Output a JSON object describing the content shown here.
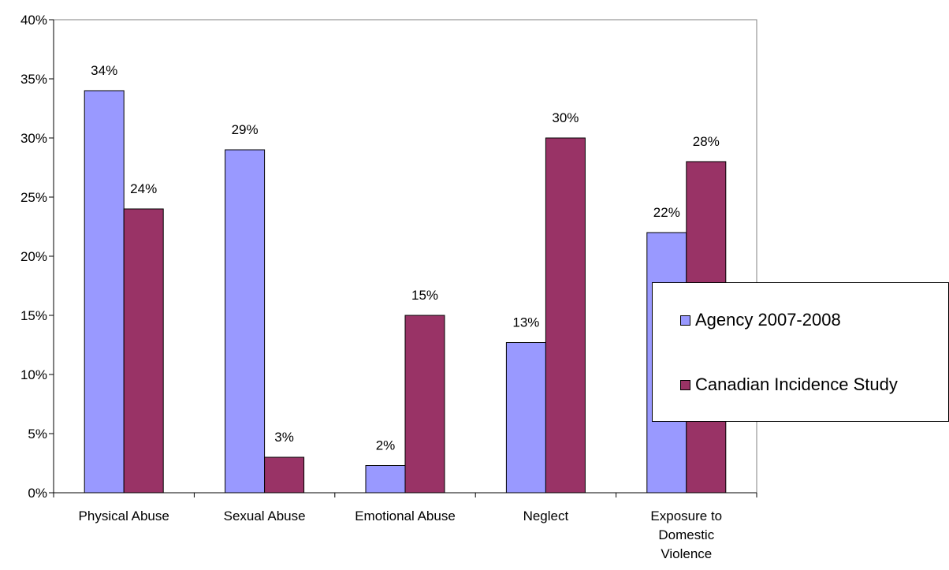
{
  "chart_data": {
    "type": "bar",
    "title": "",
    "xlabel": "",
    "ylabel": "",
    "ylim": [
      0,
      0.4
    ],
    "yticks": [
      "0%",
      "5%",
      "10%",
      "15%",
      "20%",
      "25%",
      "30%",
      "35%",
      "40%"
    ],
    "categories": [
      [
        "Physical Abuse"
      ],
      [
        "Sexual Abuse"
      ],
      [
        "Emotional Abuse"
      ],
      [
        "Neglect"
      ],
      [
        "Exposure to",
        "Domestic",
        "Violence"
      ]
    ],
    "series": [
      {
        "name": "Agency 2007-2008",
        "color": "#9999ff",
        "values": [
          0.34,
          0.29,
          0.023,
          0.127,
          0.22
        ],
        "labels": [
          "34%",
          "29%",
          "2%",
          "13%",
          "22%"
        ]
      },
      {
        "name": "Canadian Incidence Study",
        "color": "#993366",
        "values": [
          0.24,
          0.03,
          0.15,
          0.3,
          0.28
        ],
        "labels": [
          "24%",
          "3%",
          "15%",
          "30%",
          "28%"
        ]
      }
    ],
    "grid": false,
    "legend_position": "right"
  }
}
